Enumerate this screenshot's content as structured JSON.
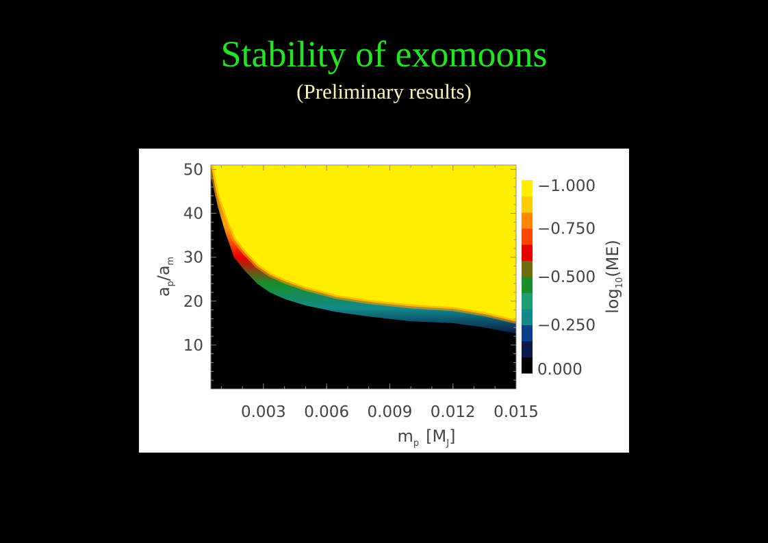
{
  "slide": {
    "title": "Stability of exomoons",
    "subtitle": "(Preliminary results)"
  },
  "colors": {
    "title": "#22e622",
    "subtitle": "#fff5b8",
    "background": "#000000",
    "figure_background": "#ffffff"
  },
  "chart_data": {
    "type": "heatmap",
    "xlabel": "m_p [M_J]",
    "xlabel_parts": {
      "symbol": "m",
      "sub": "p",
      "unit_open": "[M",
      "unit_sub": "J",
      "unit_close": "]"
    },
    "ylabel": "a_p/a_m",
    "ylabel_parts": {
      "a1": "a",
      "sub1": "p",
      "slash": "/a",
      "sub2": "m"
    },
    "colorbar_label": "log10(ME)",
    "colorbar_label_parts": {
      "pre": "log",
      "sub": "10",
      "post": "(ME)"
    },
    "xlim": [
      0.0005,
      0.015
    ],
    "ylim": [
      0,
      51
    ],
    "x_ticks": [
      0.003,
      0.006,
      0.009,
      0.012,
      0.015
    ],
    "x_tick_labels": [
      "0.003",
      "0.006",
      "0.009",
      "0.012",
      "0.015"
    ],
    "y_ticks": [
      10,
      20,
      30,
      40,
      50
    ],
    "y_tick_labels": [
      "10",
      "20",
      "30",
      "40",
      "50"
    ],
    "colorbar": {
      "range": [
        0.0,
        -1.0
      ],
      "ticks": [
        -1.0,
        -0.75,
        -0.5,
        -0.25,
        0.0
      ],
      "tick_labels": [
        "−1.000",
        "−0.750",
        "−0.500",
        "−0.250",
        "0.000"
      ],
      "levels": [
        "#000000",
        "#0a1a4a",
        "#0b3f8a",
        "#128a8a",
        "#1aa070",
        "#1a8c2a",
        "#6e6e10",
        "#e60000",
        "#ff4500",
        "#ff8800",
        "#ffcc00",
        "#ffee00"
      ]
    },
    "boundary": {
      "x": [
        0.0005,
        0.0008,
        0.0012,
        0.0016,
        0.0021,
        0.0027,
        0.0033,
        0.004,
        0.005,
        0.0065,
        0.008,
        0.01,
        0.012,
        0.0135,
        0.015
      ],
      "y_stable": [
        51,
        44,
        38.5,
        34,
        31,
        28,
        26,
        24.5,
        22.8,
        20.9,
        19.8,
        18.8,
        18.2,
        17.0,
        15.3
      ],
      "y_unstable": [
        51,
        42,
        35.5,
        30,
        27,
        24,
        22,
        20.5,
        19.0,
        17.5,
        16.5,
        15.4,
        15.0,
        14.0,
        12.6
      ]
    }
  }
}
